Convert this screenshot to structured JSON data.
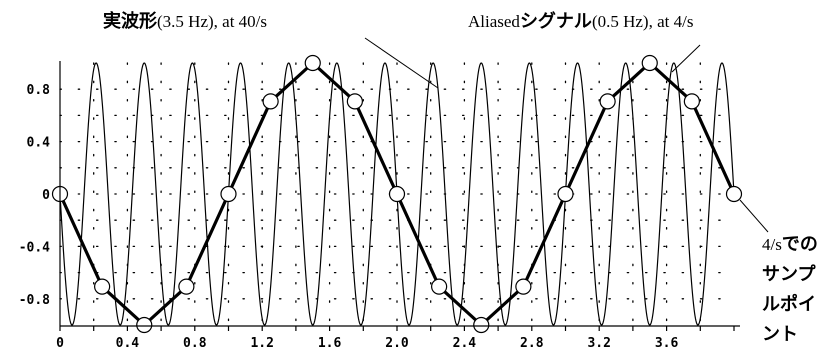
{
  "chart_data": {
    "type": "line",
    "x_ticks": [
      "0",
      "0.4",
      "0.8",
      "1.2",
      "1.6",
      "2.0",
      "2.4",
      "2.8",
      "3.2",
      "3.6"
    ],
    "y_ticks": [
      "0.8",
      "0.4",
      "0",
      "-0.4",
      "-0.8"
    ],
    "xlim": [
      0,
      4
    ],
    "ylim": [
      -1,
      1
    ],
    "grid": "dotted",
    "annotations": {
      "true_wave_jp": "実波形",
      "true_wave_rest": "(3.5 Hz), at 40/s",
      "aliased_pre": "Aliased",
      "aliased_jp": "シグナル",
      "aliased_rest": "(0.5 Hz), at 4/s",
      "sample_rate": "4/s",
      "sample_label_lines": [
        "での",
        "サンプ",
        "ルポイ",
        "ント"
      ]
    },
    "series": [
      {
        "role": "true",
        "frequency_hz": 3.5,
        "sample_rate_per_s": 40,
        "style": "thin"
      },
      {
        "role": "aliased",
        "frequency_hz": 0.5,
        "sample_rate_per_s": 4,
        "style": "thick",
        "x": [
          0,
          0.25,
          0.5,
          0.75,
          1.0,
          1.25,
          1.5,
          1.75,
          2.0,
          2.25,
          2.5,
          2.75,
          3.0,
          3.25,
          3.5,
          3.75,
          4.0
        ],
        "y": [
          0,
          -0.7071,
          -1,
          -0.7071,
          0,
          0.7071,
          1,
          0.7071,
          0,
          -0.7071,
          -1,
          -0.7071,
          0,
          0.7071,
          1,
          0.7071,
          0
        ]
      }
    ]
  },
  "colors": {
    "line": "#000000",
    "grid": "#000000",
    "marker_fill": "#ffffff"
  }
}
